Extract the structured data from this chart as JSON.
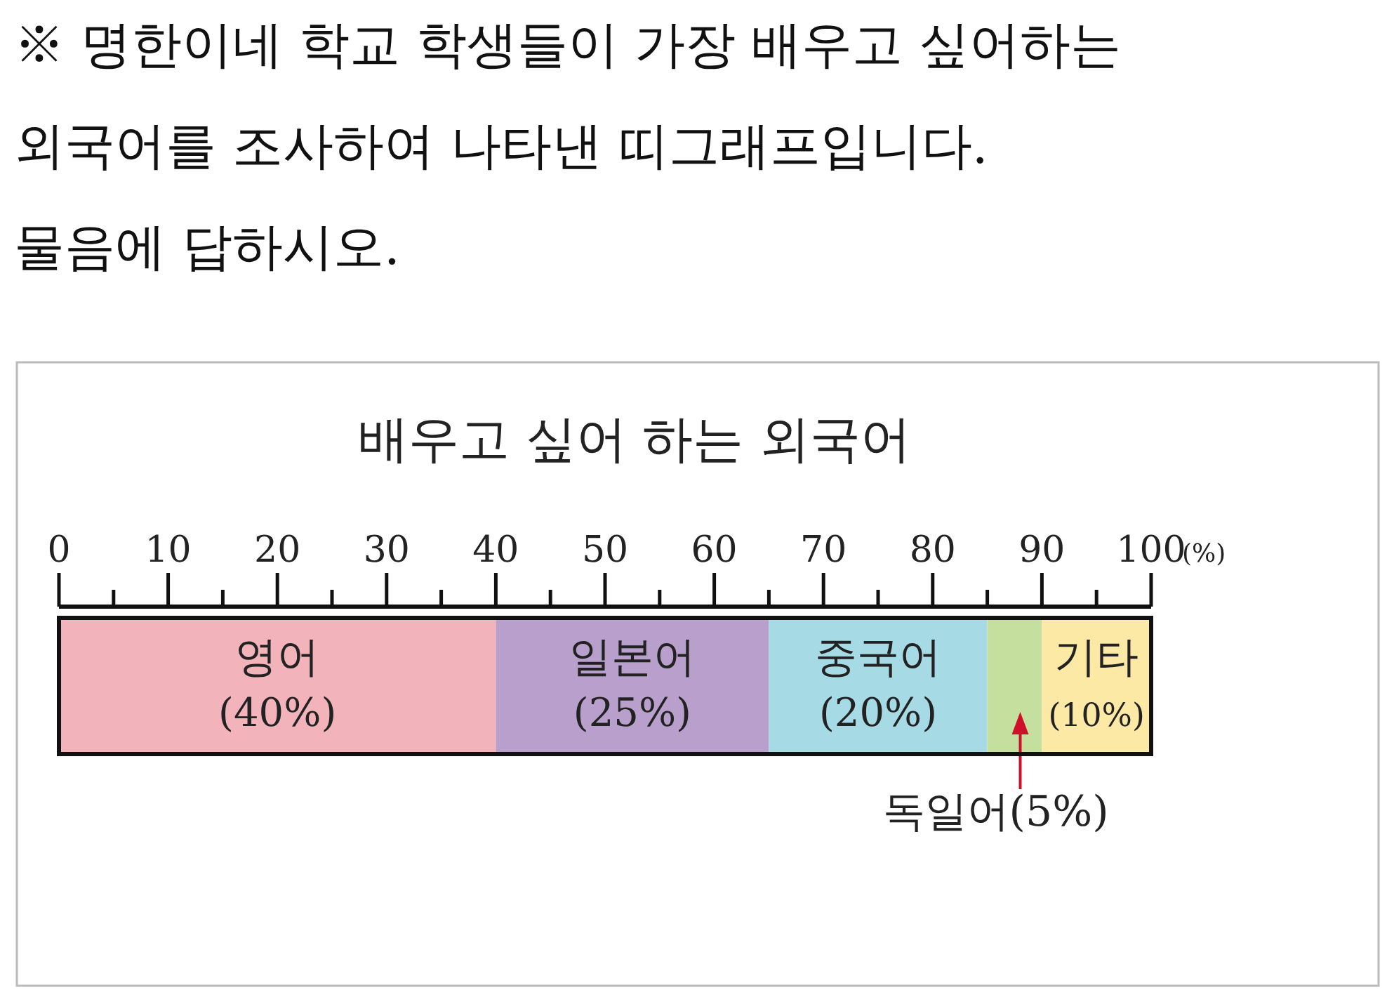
{
  "chart_data": {
    "type": "bar",
    "orientation": "horizontal",
    "stacked": true,
    "title": "배우고 싶어 하는 외국어",
    "xlabel": "(%)",
    "annotations": [
      "※ 명한이네 학교 학생들이 가장 배우고 싶어하는\n외국어를 조사하여 나타낸 띠그래프입니다.\n물음에 답하시오."
    ],
    "categories": [
      null
    ],
    "xlim": [
      0,
      100
    ],
    "xticks": [
      0,
      {
        "value": 5,
        "label": null
      },
      10,
      {
        "value": 15,
        "label": null
      },
      20,
      {
        "value": 25,
        "label": null
      },
      30,
      {
        "value": 35,
        "label": null
      },
      40,
      {
        "value": 45,
        "label": null
      },
      50,
      {
        "value": 55,
        "label": null
      },
      60,
      {
        "value": 65,
        "label": null
      },
      70,
      {
        "value": 75,
        "label": null
      },
      80,
      {
        "value": 85,
        "label": null
      },
      90,
      {
        "value": 95,
        "label": null
      },
      100
    ],
    "series": [
      {
        "name": "영어",
        "color": "#f2b3ba",
        "values": [
          40
        ],
        "value_labels": [
          "(40%)"
        ]
      },
      {
        "name": "일본어",
        "color": "#b9a0cc",
        "values": [
          25
        ],
        "value_labels": [
          "(25%)"
        ]
      },
      {
        "name": "중국어",
        "color": "#a6dbe6",
        "values": [
          20
        ],
        "value_labels": [
          "(20%)"
        ]
      },
      {
        "name": "독일어",
        "color": "#c5df9e",
        "values": [
          5
        ],
        "value_labels": [
          "(5%)"
        ]
      },
      {
        "name": "기타",
        "color": "#fde9a6",
        "values": [
          10
        ],
        "value_labels": [
          "(10%)"
        ]
      }
    ]
  }
}
